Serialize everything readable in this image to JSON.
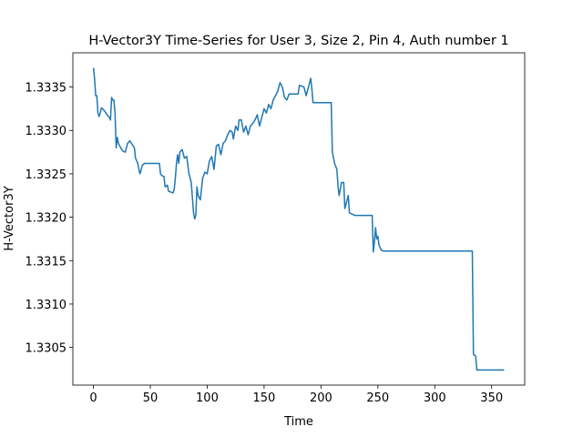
{
  "chart_data": {
    "type": "line",
    "title": "H-Vector3Y Time-Series for User 3, Size 2, Pin 4, Auth number 1",
    "x_label": "Time",
    "y_label": "H-Vector3Y",
    "xlim": [
      -18.05,
      379.05
    ],
    "ylim": [
      1.330066,
      1.333894
    ],
    "xticks": [
      0,
      50,
      100,
      150,
      200,
      250,
      300,
      350
    ],
    "yticks": [
      1.3305,
      {
        "value": 1.331,
        "label": "1.3310"
      },
      1.3315,
      {
        "value": 1.332,
        "label": "1.3320"
      },
      1.3325,
      {
        "value": 1.333,
        "label": "1.3330"
      },
      1.3335
    ],
    "series": [
      {
        "color": "#1f77b4",
        "x": [
          0,
          1,
          2,
          3,
          4,
          5,
          6,
          7,
          8,
          10,
          12,
          14,
          15,
          16,
          17,
          18,
          19,
          20,
          21,
          22,
          24,
          26,
          28,
          30,
          32,
          34,
          36,
          37,
          39,
          40,
          41,
          43,
          45,
          50,
          55,
          58,
          59,
          60,
          62,
          63,
          65,
          66,
          70,
          71,
          72,
          73,
          74,
          75,
          76,
          78,
          80,
          82,
          84,
          86,
          88,
          89,
          90,
          91,
          92,
          94,
          96,
          98,
          100,
          102,
          104,
          106,
          108,
          110,
          112,
          114,
          116,
          118,
          120,
          122,
          123,
          125,
          127,
          128,
          130,
          132,
          134,
          136,
          138,
          140,
          142,
          144,
          146,
          148,
          150,
          152,
          154,
          156,
          158,
          160,
          162,
          164,
          166,
          168,
          170,
          172,
          180,
          181,
          185,
          187,
          190,
          191,
          192,
          193,
          200,
          209,
          210,
          212,
          214,
          215,
          216,
          218,
          220,
          221,
          222,
          224,
          225,
          230,
          245,
          246,
          247,
          248,
          249,
          250,
          251,
          253,
          255,
          300,
          333,
          334,
          336,
          337,
          361
        ],
        "values": [
          1.33372,
          1.3336,
          1.3334,
          1.3334,
          1.3332,
          1.33316,
          1.3332,
          1.33326,
          1.33325,
          1.33322,
          1.33318,
          1.33315,
          1.33312,
          1.33338,
          1.33335,
          1.33335,
          1.3332,
          1.3328,
          1.33292,
          1.33285,
          1.3328,
          1.33276,
          1.33275,
          1.33285,
          1.33288,
          1.33284,
          1.3328,
          1.33268,
          1.33262,
          1.33255,
          1.3325,
          1.3326,
          1.33262,
          1.33262,
          1.33262,
          1.33262,
          1.3325,
          1.33248,
          1.33247,
          1.33235,
          1.33237,
          1.3323,
          1.33228,
          1.33232,
          1.33245,
          1.33262,
          1.33272,
          1.33262,
          1.33275,
          1.33278,
          1.33268,
          1.3327,
          1.3325,
          1.3324,
          1.33205,
          1.33198,
          1.33202,
          1.33235,
          1.33225,
          1.3322,
          1.33245,
          1.33252,
          1.3325,
          1.33265,
          1.3327,
          1.33255,
          1.33282,
          1.33284,
          1.33272,
          1.33285,
          1.33288,
          1.33295,
          1.333,
          1.33298,
          1.3329,
          1.33305,
          1.333,
          1.33312,
          1.33312,
          1.33298,
          1.33305,
          1.33295,
          1.33305,
          1.33308,
          1.33312,
          1.33318,
          1.33305,
          1.33315,
          1.33325,
          1.3332,
          1.3333,
          1.33325,
          1.33335,
          1.3334,
          1.33345,
          1.33355,
          1.3335,
          1.33338,
          1.33335,
          1.33342,
          1.33342,
          1.33352,
          1.3335,
          1.3334,
          1.33355,
          1.3336,
          1.33348,
          1.33332,
          1.33332,
          1.33332,
          1.33275,
          1.33262,
          1.33255,
          1.33235,
          1.33225,
          1.3324,
          1.3324,
          1.3321,
          1.33215,
          1.33225,
          1.33205,
          1.33202,
          1.33202,
          1.3316,
          1.33172,
          1.33188,
          1.33175,
          1.33178,
          1.33168,
          1.33162,
          1.33161,
          1.33161,
          1.33161,
          1.33042,
          1.3304,
          1.33024,
          1.33024
        ]
      }
    ]
  }
}
